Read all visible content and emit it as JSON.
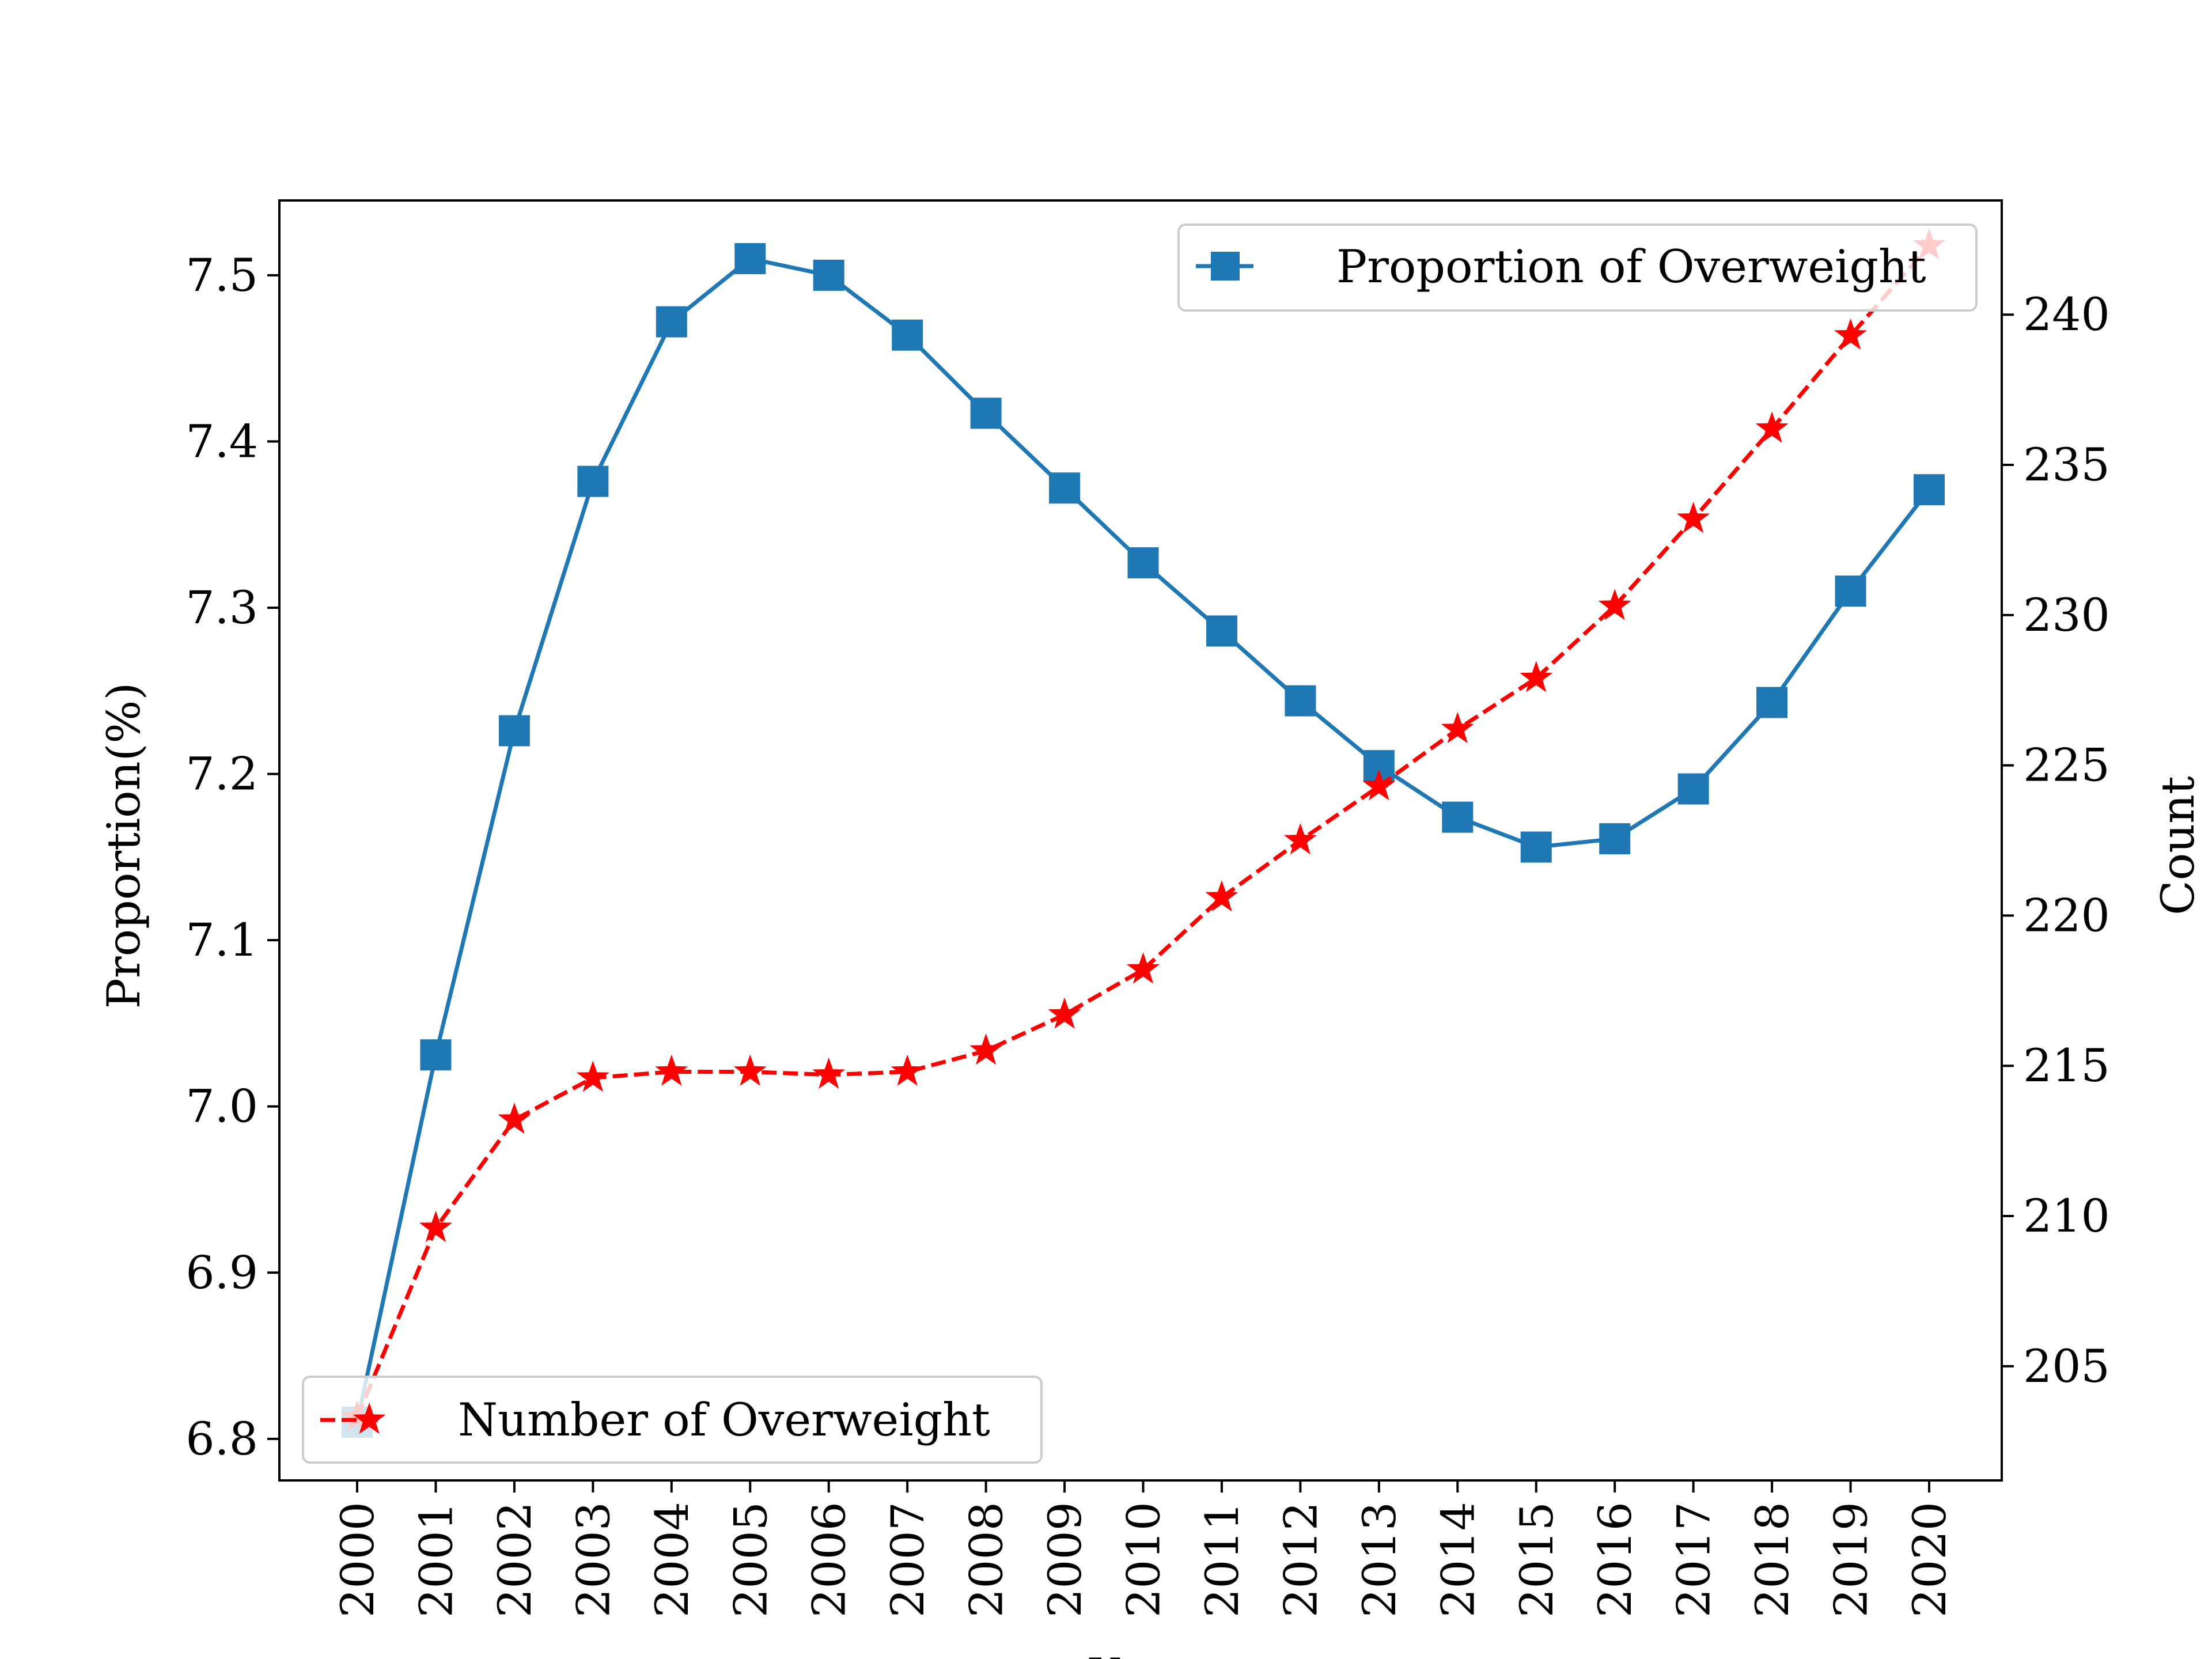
{
  "chart_data": {
    "type": "line",
    "categories": [
      "2000",
      "2001",
      "2002",
      "2003",
      "2004",
      "2005",
      "2006",
      "2007",
      "2008",
      "2009",
      "2010",
      "2011",
      "2012",
      "2013",
      "2014",
      "2015",
      "2016",
      "2017",
      "2018",
      "2019",
      "2020"
    ],
    "xlabel": "Year",
    "ylabel_left": "Proportion(%)",
    "ylabel_right": "Count",
    "ylim_left": [
      6.775,
      7.545
    ],
    "ylim_right": [
      201.2,
      243.8
    ],
    "yticks_left": [
      6.8,
      6.9,
      7.0,
      7.1,
      7.2,
      7.3,
      7.4,
      7.5
    ],
    "yticks_right": [
      205,
      210,
      215,
      220,
      225,
      230,
      235,
      240
    ],
    "grid": false,
    "series": [
      {
        "name": "Proportion of Overweight",
        "axis": "left",
        "color": "#1f77b4",
        "line_style": "solid",
        "marker": "square",
        "legend_position": "upper right",
        "values": [
          6.81,
          7.031,
          7.226,
          7.376,
          7.472,
          7.51,
          7.5,
          7.464,
          7.417,
          7.372,
          7.327,
          7.286,
          7.244,
          7.205,
          7.174,
          7.156,
          7.161,
          7.191,
          7.243,
          7.31,
          7.371
        ]
      },
      {
        "name": "Number of Overweight",
        "axis": "right",
        "color": "#ff0000",
        "line_style": "dashed",
        "marker": "star",
        "legend_position": "lower left",
        "values": [
          203.3,
          209.6,
          213.2,
          214.6,
          214.8,
          214.8,
          214.7,
          214.8,
          215.5,
          216.7,
          218.2,
          220.6,
          222.5,
          224.3,
          226.2,
          227.9,
          230.3,
          233.2,
          236.2,
          239.3,
          242.3
        ]
      }
    ]
  }
}
